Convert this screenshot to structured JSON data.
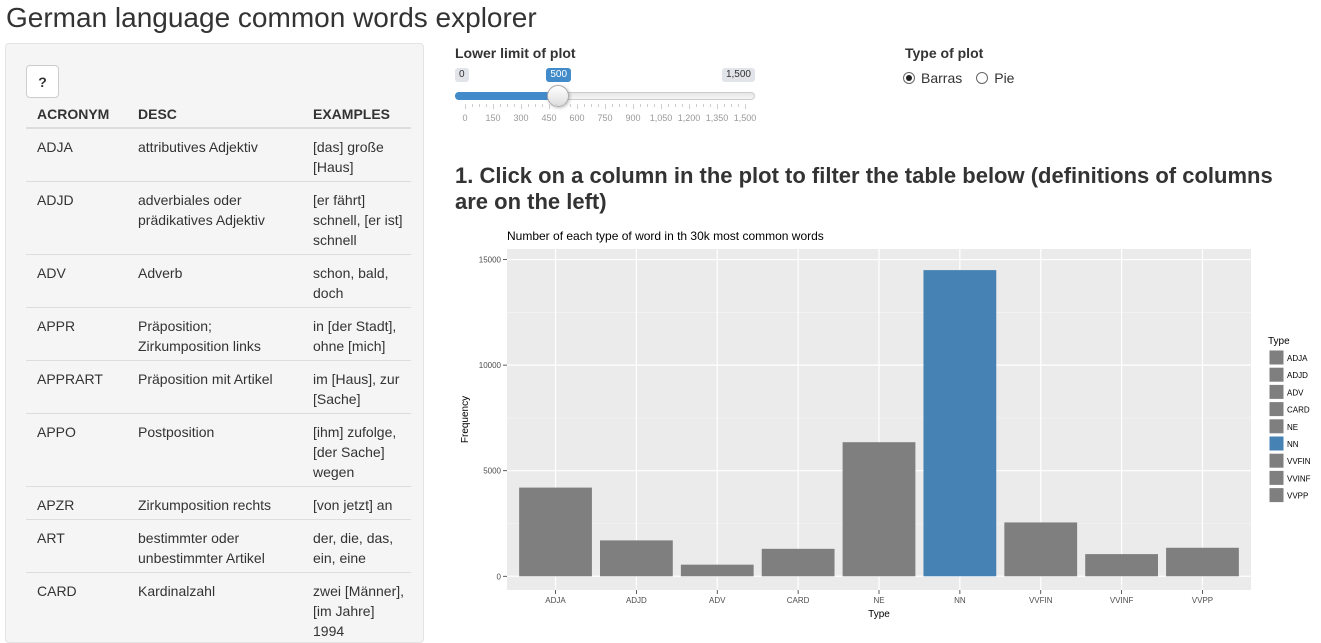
{
  "app": {
    "title": "German language common words explorer"
  },
  "sidebar": {
    "help_button": "?",
    "table": {
      "headers": [
        "ACRONYM",
        "DESC",
        "EXAMPLES"
      ],
      "rows": [
        {
          "acronym": "ADJA",
          "desc": "attributives Adjektiv",
          "examples": "[das] große [Haus]"
        },
        {
          "acronym": "ADJD",
          "desc": "adverbiales oder prädikatives Adjektiv",
          "examples": "[er fährt] schnell, [er ist] schnell"
        },
        {
          "acronym": "ADV",
          "desc": "Adverb",
          "examples": "schon, bald, doch"
        },
        {
          "acronym": "APPR",
          "desc": "Präposition; Zirkumposition links",
          "examples": "in [der Stadt], ohne [mich]"
        },
        {
          "acronym": "APPRART",
          "desc": "Präposition mit Artikel",
          "examples": "im [Haus], zur [Sache]"
        },
        {
          "acronym": "APPO",
          "desc": "Postposition",
          "examples": "[ihm] zufolge, [der Sache] wegen"
        },
        {
          "acronym": "APZR",
          "desc": "Zirkumposition rechts",
          "examples": "[von jetzt] an"
        },
        {
          "acronym": "ART",
          "desc": "bestimmter oder unbestimmter Artikel",
          "examples": "der, die, das, ein, eine"
        },
        {
          "acronym": "CARD",
          "desc": "Kardinalzahl",
          "examples": "zwei [Männer], [im Jahre] 1994"
        }
      ]
    }
  },
  "controls": {
    "slider": {
      "label": "Lower limit of plot",
      "min_label": "0",
      "max_label": "1,500",
      "value_label": "500",
      "min": 0,
      "max": 1500,
      "value": 500,
      "grid_labels": [
        "0",
        "150",
        "300",
        "450",
        "600",
        "750",
        "900",
        "1,050",
        "1,200",
        "1,350",
        "1,500"
      ],
      "accent_color": "#428bca"
    },
    "plot_type": {
      "label": "Type of plot",
      "options": [
        {
          "label": "Barras",
          "checked": true
        },
        {
          "label": "Pie",
          "checked": false
        }
      ]
    }
  },
  "main": {
    "heading": "1. Click on a column in the plot to filter the table below (definitions of columns are on the left)"
  },
  "chart_data": {
    "type": "bar",
    "title": "Number of each type of word in th 30k most common words",
    "xlabel": "Type",
    "ylabel": "Frequency",
    "categories": [
      "ADJA",
      "ADJD",
      "ADV",
      "CARD",
      "NE",
      "NN",
      "VVFIN",
      "VVINF",
      "VVPP"
    ],
    "values": [
      4200,
      1700,
      550,
      1300,
      6350,
      14500,
      2550,
      1050,
      1350
    ],
    "highlighted": "NN",
    "ylim": [
      0,
      15500
    ],
    "yticks": [
      0,
      5000,
      10000,
      15000
    ],
    "ytick_labels": [
      "0",
      "5000",
      "10000",
      "15000"
    ],
    "grid": true,
    "legend": {
      "title": "Type",
      "position": "right",
      "entries": [
        "ADJA",
        "ADJD",
        "ADV",
        "CARD",
        "NE",
        "NN",
        "VVFIN",
        "VVINF",
        "VVPP"
      ]
    },
    "colors": {
      "default": "#7f7f7f",
      "highlight": "#4682b4",
      "panel": "#ebebeb",
      "grid": "#ffffff"
    }
  }
}
